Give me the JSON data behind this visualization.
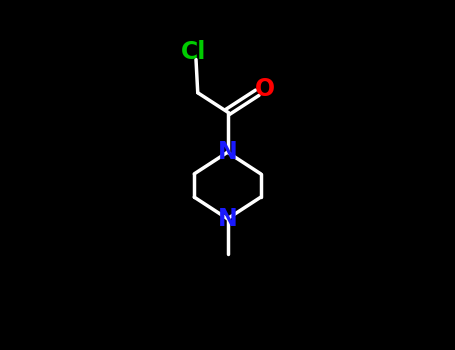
{
  "bg_color": "#000000",
  "bond_color": "#ffffff",
  "N_color": "#1a1aff",
  "O_color": "#ff0000",
  "Cl_color": "#00cc00",
  "bond_width": 2.5,
  "figsize": [
    4.55,
    3.5
  ],
  "dpi": 100,
  "N1_label": "N",
  "N4_label": "N",
  "O_label": "O",
  "Cl_label": "Cl",
  "font_size": 17
}
